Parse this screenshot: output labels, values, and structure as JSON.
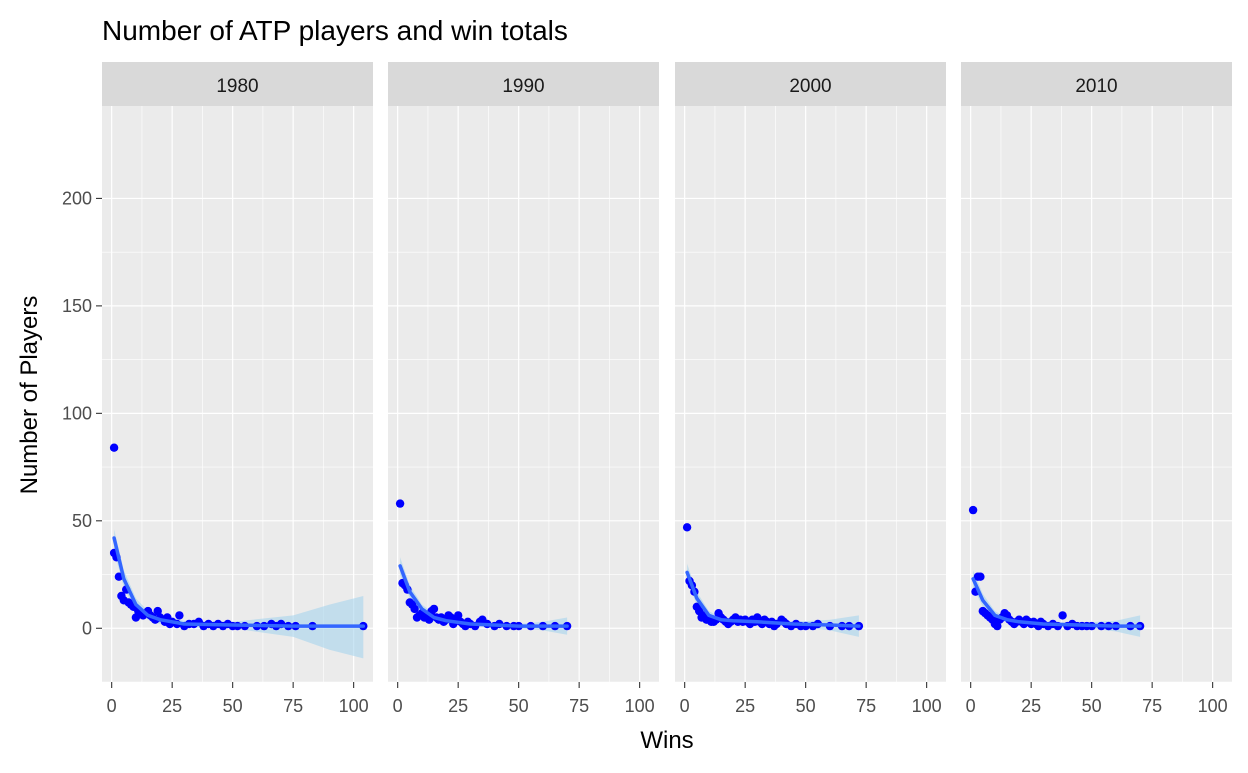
{
  "chart_data": {
    "type": "scatter",
    "title": "Number of ATP players and win totals",
    "xlabel": "Wins",
    "ylabel": "Number of Players",
    "xlim": [
      -4,
      108
    ],
    "ylim": [
      -25,
      243
    ],
    "x_ticks": [
      0,
      25,
      50,
      75,
      100
    ],
    "y_ticks": [
      0,
      50,
      100,
      150,
      200
    ],
    "grid": true,
    "facets": [
      {
        "label": "1980",
        "points": [
          [
            1,
            84
          ],
          [
            1,
            35
          ],
          [
            2,
            33
          ],
          [
            3,
            24
          ],
          [
            4,
            15
          ],
          [
            5,
            13
          ],
          [
            6,
            18
          ],
          [
            7,
            12
          ],
          [
            8,
            11
          ],
          [
            9,
            10
          ],
          [
            10,
            5
          ],
          [
            11,
            8
          ],
          [
            12,
            7
          ],
          [
            13,
            6
          ],
          [
            15,
            8
          ],
          [
            16,
            6
          ],
          [
            17,
            5
          ],
          [
            18,
            4
          ],
          [
            19,
            8
          ],
          [
            20,
            5
          ],
          [
            22,
            3
          ],
          [
            23,
            5
          ],
          [
            24,
            2
          ],
          [
            25,
            3
          ],
          [
            27,
            2
          ],
          [
            28,
            6
          ],
          [
            30,
            1
          ],
          [
            32,
            2
          ],
          [
            34,
            2
          ],
          [
            36,
            3
          ],
          [
            38,
            1
          ],
          [
            40,
            2
          ],
          [
            42,
            1
          ],
          [
            44,
            2
          ],
          [
            46,
            1
          ],
          [
            48,
            2
          ],
          [
            50,
            1
          ],
          [
            52,
            1
          ],
          [
            55,
            1
          ],
          [
            60,
            1
          ],
          [
            63,
            1
          ],
          [
            66,
            2
          ],
          [
            68,
            1
          ],
          [
            70,
            2
          ],
          [
            73,
            1
          ],
          [
            76,
            1
          ],
          [
            83,
            1
          ],
          [
            104,
            1
          ]
        ],
        "fit": [
          [
            1,
            42
          ],
          [
            5,
            23
          ],
          [
            10,
            11
          ],
          [
            15,
            6
          ],
          [
            20,
            4
          ],
          [
            30,
            2
          ],
          [
            50,
            1.5
          ],
          [
            75,
            1
          ],
          [
            104,
            1
          ]
        ],
        "band_upper": [
          [
            1,
            46
          ],
          [
            5,
            27
          ],
          [
            10,
            14
          ],
          [
            15,
            8
          ],
          [
            20,
            6
          ],
          [
            30,
            3.5
          ],
          [
            50,
            3
          ],
          [
            75,
            6
          ],
          [
            90,
            11
          ],
          [
            104,
            15
          ]
        ],
        "band_lower": [
          [
            1,
            36
          ],
          [
            5,
            19
          ],
          [
            10,
            8
          ],
          [
            15,
            4
          ],
          [
            20,
            2
          ],
          [
            30,
            0.5
          ],
          [
            50,
            0
          ],
          [
            75,
            -4
          ],
          [
            90,
            -10
          ],
          [
            104,
            -14
          ]
        ]
      },
      {
        "label": "1990",
        "points": [
          [
            1,
            58
          ],
          [
            2,
            21
          ],
          [
            3,
            20
          ],
          [
            4,
            18
          ],
          [
            5,
            12
          ],
          [
            6,
            11
          ],
          [
            7,
            9
          ],
          [
            8,
            5
          ],
          [
            9,
            6
          ],
          [
            10,
            7
          ],
          [
            11,
            5
          ],
          [
            12,
            6
          ],
          [
            13,
            4
          ],
          [
            14,
            8
          ],
          [
            15,
            9
          ],
          [
            16,
            5
          ],
          [
            17,
            4
          ],
          [
            18,
            5
          ],
          [
            19,
            3
          ],
          [
            20,
            4
          ],
          [
            21,
            6
          ],
          [
            22,
            5
          ],
          [
            23,
            2
          ],
          [
            24,
            4
          ],
          [
            25,
            6
          ],
          [
            26,
            3
          ],
          [
            27,
            2
          ],
          [
            28,
            1
          ],
          [
            29,
            3
          ],
          [
            30,
            2
          ],
          [
            32,
            1
          ],
          [
            34,
            3
          ],
          [
            35,
            4
          ],
          [
            37,
            2
          ],
          [
            40,
            1
          ],
          [
            42,
            2
          ],
          [
            45,
            1
          ],
          [
            48,
            1
          ],
          [
            50,
            1
          ],
          [
            55,
            1
          ],
          [
            60,
            1
          ],
          [
            65,
            1
          ],
          [
            70,
            1
          ]
        ],
        "fit": [
          [
            1,
            29
          ],
          [
            5,
            17
          ],
          [
            10,
            9
          ],
          [
            15,
            5
          ],
          [
            20,
            3.5
          ],
          [
            30,
            2
          ],
          [
            50,
            1
          ],
          [
            70,
            1
          ]
        ],
        "band_upper": [
          [
            1,
            33
          ],
          [
            5,
            20
          ],
          [
            10,
            11
          ],
          [
            15,
            7
          ],
          [
            20,
            5
          ],
          [
            30,
            3
          ],
          [
            50,
            2
          ],
          [
            60,
            3
          ],
          [
            70,
            5
          ]
        ],
        "band_lower": [
          [
            1,
            25
          ],
          [
            5,
            14
          ],
          [
            10,
            7
          ],
          [
            15,
            3
          ],
          [
            20,
            2
          ],
          [
            30,
            1
          ],
          [
            50,
            0
          ],
          [
            60,
            -1
          ],
          [
            70,
            -3
          ]
        ]
      },
      {
        "label": "2000",
        "points": [
          [
            1,
            47
          ],
          [
            2,
            22
          ],
          [
            3,
            20
          ],
          [
            4,
            17
          ],
          [
            5,
            10
          ],
          [
            6,
            8
          ],
          [
            7,
            5
          ],
          [
            8,
            6
          ],
          [
            9,
            4
          ],
          [
            10,
            4
          ],
          [
            11,
            3
          ],
          [
            12,
            3
          ],
          [
            13,
            4
          ],
          [
            14,
            7
          ],
          [
            15,
            5
          ],
          [
            16,
            4
          ],
          [
            17,
            3
          ],
          [
            18,
            2
          ],
          [
            19,
            3
          ],
          [
            20,
            4
          ],
          [
            21,
            5
          ],
          [
            22,
            3
          ],
          [
            23,
            4
          ],
          [
            24,
            3
          ],
          [
            25,
            4
          ],
          [
            26,
            3
          ],
          [
            27,
            2
          ],
          [
            28,
            4
          ],
          [
            29,
            3
          ],
          [
            30,
            5
          ],
          [
            31,
            3
          ],
          [
            32,
            2
          ],
          [
            33,
            4
          ],
          [
            34,
            3
          ],
          [
            35,
            2
          ],
          [
            36,
            3
          ],
          [
            37,
            1
          ],
          [
            38,
            2
          ],
          [
            40,
            4
          ],
          [
            41,
            3
          ],
          [
            42,
            2
          ],
          [
            44,
            1
          ],
          [
            46,
            2
          ],
          [
            48,
            1
          ],
          [
            50,
            1
          ],
          [
            53,
            1
          ],
          [
            55,
            2
          ],
          [
            60,
            1
          ],
          [
            65,
            1
          ],
          [
            68,
            1
          ],
          [
            72,
            1
          ]
        ],
        "fit": [
          [
            1,
            26
          ],
          [
            5,
            14
          ],
          [
            10,
            6
          ],
          [
            15,
            4
          ],
          [
            20,
            3.5
          ],
          [
            30,
            3
          ],
          [
            45,
            2
          ],
          [
            60,
            1.5
          ],
          [
            72,
            1
          ]
        ],
        "band_upper": [
          [
            1,
            30
          ],
          [
            5,
            17
          ],
          [
            10,
            8
          ],
          [
            15,
            5
          ],
          [
            20,
            4.5
          ],
          [
            30,
            4
          ],
          [
            45,
            3
          ],
          [
            60,
            4
          ],
          [
            72,
            6
          ]
        ],
        "band_lower": [
          [
            1,
            22
          ],
          [
            5,
            11
          ],
          [
            10,
            4
          ],
          [
            15,
            3
          ],
          [
            20,
            2.5
          ],
          [
            30,
            2
          ],
          [
            45,
            1
          ],
          [
            60,
            -1
          ],
          [
            72,
            -4
          ]
        ]
      },
      {
        "label": "2010",
        "points": [
          [
            1,
            55
          ],
          [
            2,
            17
          ],
          [
            3,
            24
          ],
          [
            4,
            24
          ],
          [
            5,
            8
          ],
          [
            6,
            7
          ],
          [
            7,
            6
          ],
          [
            8,
            5
          ],
          [
            9,
            4
          ],
          [
            10,
            2
          ],
          [
            11,
            1
          ],
          [
            12,
            4
          ],
          [
            13,
            5
          ],
          [
            14,
            7
          ],
          [
            15,
            6
          ],
          [
            16,
            4
          ],
          [
            17,
            3
          ],
          [
            18,
            2
          ],
          [
            19,
            3
          ],
          [
            20,
            4
          ],
          [
            21,
            3
          ],
          [
            22,
            2
          ],
          [
            23,
            4
          ],
          [
            24,
            3
          ],
          [
            25,
            2
          ],
          [
            26,
            3
          ],
          [
            27,
            2
          ],
          [
            28,
            1
          ],
          [
            29,
            3
          ],
          [
            30,
            2
          ],
          [
            32,
            1
          ],
          [
            34,
            2
          ],
          [
            36,
            1
          ],
          [
            38,
            6
          ],
          [
            40,
            1
          ],
          [
            42,
            2
          ],
          [
            44,
            1
          ],
          [
            46,
            1
          ],
          [
            48,
            1
          ],
          [
            50,
            1
          ],
          [
            54,
            1
          ],
          [
            57,
            1
          ],
          [
            60,
            1
          ],
          [
            66,
            1
          ],
          [
            70,
            1
          ]
        ],
        "fit": [
          [
            1,
            23
          ],
          [
            5,
            13
          ],
          [
            10,
            6
          ],
          [
            15,
            4
          ],
          [
            20,
            3
          ],
          [
            30,
            2
          ],
          [
            45,
            1.5
          ],
          [
            60,
            1
          ],
          [
            70,
            1
          ]
        ],
        "band_upper": [
          [
            1,
            27
          ],
          [
            5,
            16
          ],
          [
            10,
            8
          ],
          [
            15,
            5
          ],
          [
            20,
            4
          ],
          [
            30,
            3
          ],
          [
            45,
            2.5
          ],
          [
            60,
            3.5
          ],
          [
            70,
            6
          ]
        ],
        "band_lower": [
          [
            1,
            19
          ],
          [
            5,
            10
          ],
          [
            10,
            4
          ],
          [
            15,
            3
          ],
          [
            20,
            2
          ],
          [
            30,
            1
          ],
          [
            45,
            0.5
          ],
          [
            60,
            -1.5
          ],
          [
            70,
            -4
          ]
        ]
      }
    ],
    "colors": {
      "panel_bg": "#ebebeb",
      "strip_bg": "#d9d9d9",
      "grid_major": "#ffffff",
      "point": "#0000ff",
      "fit_line": "#3366ff",
      "band": "#a6d4ec",
      "axis_text": "#4d4d4d",
      "strip_text": "#1a1a1a"
    }
  }
}
